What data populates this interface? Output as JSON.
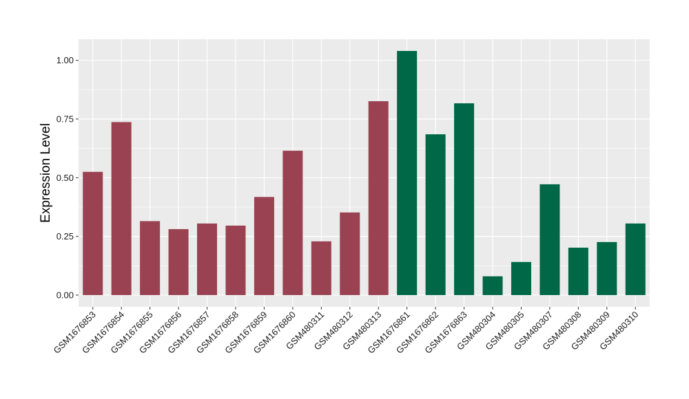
{
  "chart_data": {
    "type": "bar",
    "title": "",
    "xlabel": "",
    "ylabel": "Expression Level",
    "ylim": [
      -0.05,
      1.09
    ],
    "yticks": [
      0.0,
      0.25,
      0.5,
      0.75,
      1.0
    ],
    "ytick_labels": [
      "0.00",
      "0.25",
      "0.50",
      "0.75",
      "1.00"
    ],
    "grid": true,
    "legend": "none",
    "colors": {
      "group1": "#9a4251",
      "group2": "#006846",
      "panel": "#ebebeb",
      "grid": "#ffffff"
    },
    "categories": [
      "GSM1676853",
      "GSM1676854",
      "GSM1676855",
      "GSM1676856",
      "GSM1676857",
      "GSM1676858",
      "GSM1676859",
      "GSM1676860",
      "GSM480311",
      "GSM480312",
      "GSM480313",
      "GSM1676861",
      "GSM1676862",
      "GSM1676863",
      "GSM480304",
      "GSM480305",
      "GSM480307",
      "GSM480308",
      "GSM480309",
      "GSM480310"
    ],
    "values": [
      0.525,
      0.737,
      0.315,
      0.281,
      0.305,
      0.296,
      0.418,
      0.615,
      0.229,
      0.352,
      0.826,
      1.04,
      0.685,
      0.817,
      0.08,
      0.141,
      0.472,
      0.202,
      0.226,
      0.305
    ],
    "groups": [
      1,
      1,
      1,
      1,
      1,
      1,
      1,
      1,
      1,
      1,
      1,
      2,
      2,
      2,
      2,
      2,
      2,
      2,
      2,
      2
    ]
  }
}
